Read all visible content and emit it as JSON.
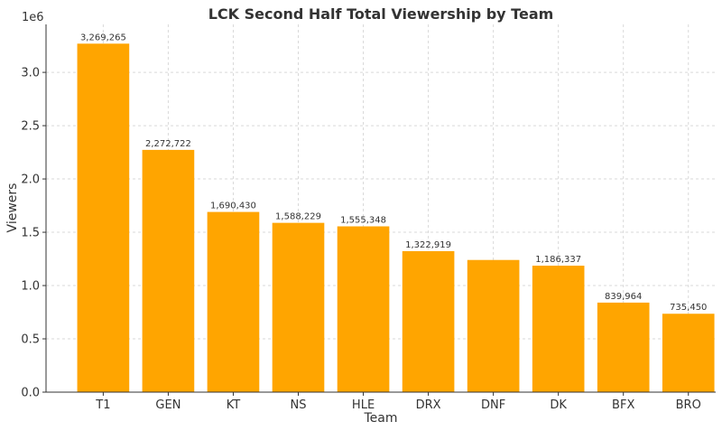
{
  "chart_data": {
    "type": "bar",
    "title": "LCK Second Half Total Viewership by Team",
    "xlabel": "Team",
    "ylabel": "Viewers",
    "y_offset_label": "1e6",
    "ylim": [
      0,
      3.45
    ],
    "yticks": [
      0.0,
      0.5,
      1.0,
      1.5,
      2.0,
      2.5,
      3.0
    ],
    "ytick_labels": [
      "0.0",
      "0.5",
      "1.0",
      "1.5",
      "2.0",
      "2.5",
      "3.0"
    ],
    "grid": true,
    "bar_color": "#FFA500",
    "categories": [
      "T1",
      "GEN",
      "KT",
      "NS",
      "HLE",
      "DRX",
      "DNF",
      "DK",
      "BFX",
      "BRO"
    ],
    "values": [
      3.269265,
      2.272722,
      1.69043,
      1.588229,
      1.555348,
      1.322919,
      1.24,
      1.186337,
      0.839964,
      0.73545
    ],
    "data_labels": [
      "3,269,265",
      "2,272,722",
      "1,690,430",
      "1,588,229",
      "1,555,348",
      "1,322,919",
      "",
      "1,186,337",
      "839,964",
      "735,450"
    ]
  }
}
